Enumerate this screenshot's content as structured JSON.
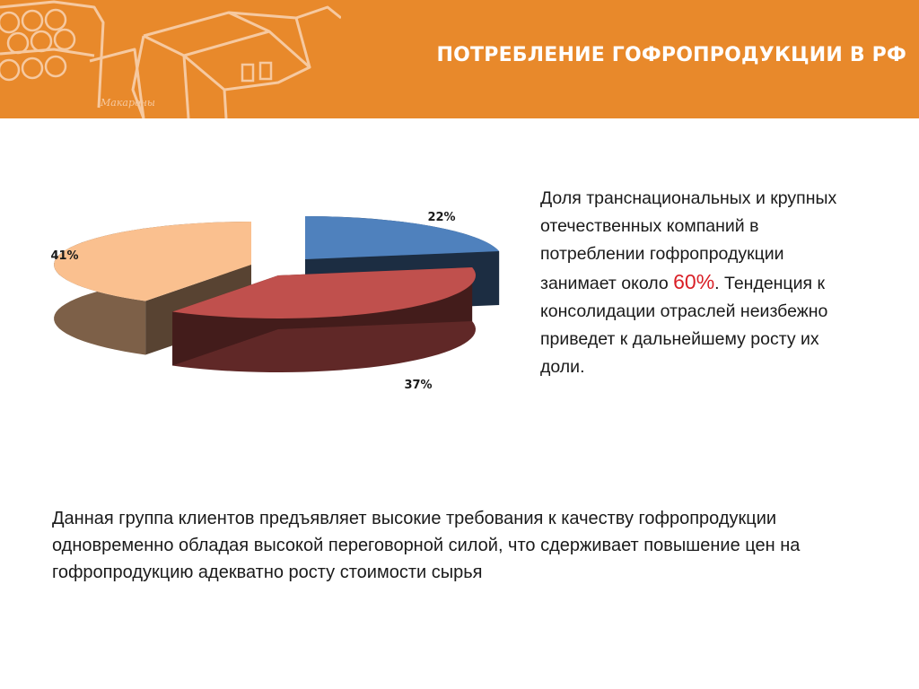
{
  "header": {
    "title": "ПОТРЕБЛЕНИЕ ГОФРОПРОДУКЦИИ В РФ",
    "box_label": "Макароны",
    "accent_color": "#e8892b"
  },
  "chart_data": {
    "type": "pie",
    "style": "3d-exploded",
    "slices": [
      {
        "value": 22,
        "label": "22%",
        "color": "#4f81bd"
      },
      {
        "value": 37,
        "label": "37%",
        "color": "#c0504d"
      },
      {
        "value": 41,
        "label": "41%",
        "color": "#fac08f"
      }
    ],
    "title": "",
    "legend": "none"
  },
  "side_text": {
    "part1": "Доля транснациональных и крупных отечественных компаний в потреблении гофропродукции занимает около ",
    "highlight": "60%",
    "part2": ". Тенденция к консолидации отраслей неизбежно приведет к дальнейшему росту их доли.",
    "highlight_color": "#d91f26"
  },
  "bottom_text": "Данная группа клиентов предъявляет высокие требования к качеству гофропродукции одновременно обладая высокой переговорной силой, что сдерживает повышение цен на гофропродукцию адекватно росту стоимости сырья"
}
